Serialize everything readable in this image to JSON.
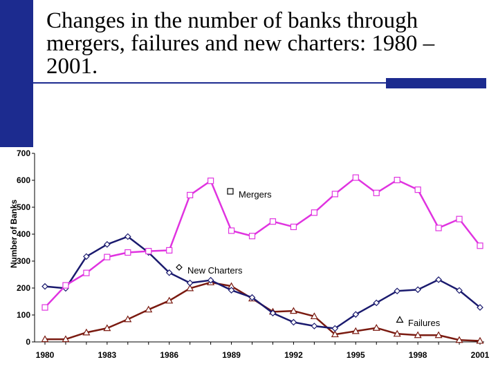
{
  "title": "Changes in the number of banks through mergers, failures and new charters: 1980 – 2001.",
  "chart_data": {
    "type": "line",
    "x": [
      1980,
      1981,
      1982,
      1983,
      1984,
      1985,
      1986,
      1987,
      1988,
      1989,
      1990,
      1991,
      1992,
      1993,
      1994,
      1995,
      1996,
      1997,
      1998,
      1999,
      2000,
      2001
    ],
    "xticks": [
      1980,
      1983,
      1986,
      1989,
      1992,
      1995,
      1998,
      2001
    ],
    "xticklabels": [
      "1980",
      "1983",
      "1986",
      "1989",
      "1992",
      "1995",
      "1998",
      "2001"
    ],
    "yticks": [
      0,
      100,
      200,
      300,
      400,
      500,
      600,
      700
    ],
    "yticklabels": [
      "0",
      "100",
      "200",
      "300",
      "400",
      "500",
      "600",
      "700"
    ],
    "ylim": [
      0,
      700
    ],
    "xlabel": "",
    "ylabel": "Number of Banks",
    "grid": false,
    "series": [
      {
        "name": "Mergers",
        "color": "#e033e0",
        "marker": "square",
        "values": [
          128,
          210,
          256,
          315,
          332,
          337,
          340,
          545,
          598,
          413,
          393,
          447,
          427,
          480,
          549,
          610,
          553,
          601,
          565,
          423,
          456,
          357
        ]
      },
      {
        "name": "New Charters",
        "color": "#1a1a6e",
        "marker": "diamond",
        "values": [
          206,
          199,
          317,
          362,
          391,
          332,
          257,
          219,
          229,
          192,
          165,
          107,
          73,
          59,
          50,
          102,
          145,
          189,
          194,
          231,
          191,
          128
        ]
      },
      {
        "name": "Failures",
        "color": "#7a1a10",
        "marker": "triangle",
        "values": [
          10,
          10,
          35,
          51,
          84,
          120,
          153,
          199,
          221,
          207,
          161,
          112,
          115,
          95,
          28,
          40,
          52,
          30,
          25,
          25,
          7,
          4
        ]
      }
    ]
  }
}
